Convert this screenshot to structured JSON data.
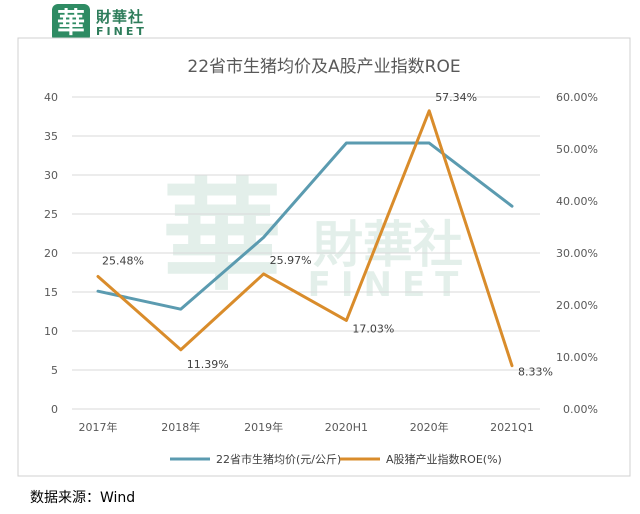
{
  "logo": {
    "mark": "華",
    "name_cn": "財華社",
    "name_en": "FINET"
  },
  "watermark": {
    "mark": "華",
    "name_cn": "財華社",
    "name_en": "FINET"
  },
  "source": "数据来源：Wind",
  "colors": {
    "line1": "#5b9bb0",
    "line2": "#d98c2b",
    "grid": "#d9d9d9",
    "axis_text": "#595959",
    "title": "#595959"
  },
  "chart_data": {
    "type": "line",
    "title": "22省市生猪均价及A股产业指数ROE",
    "categories": [
      "2017年",
      "2018年",
      "2019年",
      "2020H1",
      "2020年",
      "2021Q1"
    ],
    "y_left": {
      "min": 0,
      "max": 40,
      "ticks": [
        0,
        5,
        10,
        15,
        20,
        25,
        30,
        35,
        40
      ],
      "tick_labels": [
        "0",
        "5",
        "10",
        "15",
        "20",
        "25",
        "30",
        "35",
        "40"
      ]
    },
    "y_right": {
      "min": 0,
      "max": 0.6,
      "ticks": [
        0,
        0.1,
        0.2,
        0.3,
        0.4,
        0.5,
        0.6
      ],
      "tick_labels": [
        "0.00%",
        "10.00%",
        "20.00%",
        "30.00%",
        "40.00%",
        "50.00%",
        "60.00%"
      ]
    },
    "grid": true,
    "legend_position": "bottom",
    "series": [
      {
        "name": "22省市生猪均价(元/公斤)",
        "axis": "left",
        "values": [
          15.1,
          12.8,
          22.0,
          34.1,
          34.1,
          26.0
        ]
      },
      {
        "name": "A股猪产业指数ROE(%)",
        "axis": "right",
        "values": [
          0.2548,
          0.1139,
          0.2597,
          0.1703,
          0.5734,
          0.0833
        ],
        "data_labels": [
          "25.48%",
          "11.39%",
          "25.97%",
          "17.03%",
          "57.34%",
          "8.33%"
        ]
      }
    ]
  }
}
